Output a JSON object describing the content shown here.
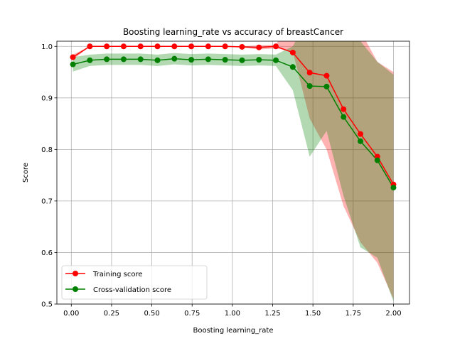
{
  "chart_data": {
    "type": "line",
    "title": "Boosting learning_rate vs accuracy of breastCancer",
    "xlabel": "Boosting learning_rate",
    "ylabel": "Score",
    "xlim": [
      -0.0895,
      2.0995
    ],
    "ylim": [
      0.5,
      1.01
    ],
    "x_ticks": [
      "0.00",
      "0.25",
      "0.50",
      "0.75",
      "1.00",
      "1.25",
      "1.50",
      "1.75",
      "2.00"
    ],
    "y_ticks": [
      "0.5",
      "0.6",
      "0.7",
      "0.8",
      "0.9",
      "1.0"
    ],
    "grid": true,
    "legend_position": "lower-left",
    "x": [
      0.01,
      0.115,
      0.22,
      0.325,
      0.43,
      0.535,
      0.64,
      0.745,
      0.85,
      0.955,
      1.06,
      1.165,
      1.27,
      1.375,
      1.48,
      1.585,
      1.69,
      1.795,
      1.9,
      2.0
    ],
    "series": [
      {
        "name": "Training score",
        "color": "#ff0000",
        "band_color": "#ff0000",
        "values": [
          0.979,
          1.0,
          1.0,
          1.0,
          1.0,
          1.0,
          1.0,
          1.0,
          1.0,
          1.0,
          0.999,
          0.998,
          1.0,
          0.988,
          0.949,
          0.943,
          0.878,
          0.83,
          0.786,
          0.732
        ],
        "band_upper": [
          0.984,
          1.0,
          1.0,
          1.0,
          1.0,
          1.0,
          1.0,
          1.0,
          1.0,
          1.0,
          1.0,
          1.002,
          1.003,
          1.06,
          1.09,
          1.12,
          1.1,
          1.03,
          0.97,
          0.95
        ],
        "band_lower": [
          0.974,
          1.0,
          1.0,
          1.0,
          1.0,
          1.0,
          1.0,
          1.0,
          1.0,
          1.0,
          0.998,
          0.994,
          0.996,
          0.99,
          0.86,
          0.8,
          0.69,
          0.62,
          0.58,
          0.51
        ]
      },
      {
        "name": "Cross-validation score",
        "color": "#008000",
        "band_color": "#008000",
        "values": [
          0.965,
          0.973,
          0.975,
          0.975,
          0.975,
          0.973,
          0.976,
          0.974,
          0.975,
          0.974,
          0.973,
          0.974,
          0.973,
          0.96,
          0.923,
          0.922,
          0.863,
          0.816,
          0.779,
          0.726
        ],
        "band_upper": [
          0.979,
          0.984,
          0.986,
          0.986,
          0.986,
          0.984,
          0.987,
          0.985,
          0.986,
          0.985,
          0.984,
          0.985,
          0.984,
          1.0,
          1.06,
          1.06,
          1.03,
          1.01,
          0.97,
          0.945
        ],
        "band_lower": [
          0.951,
          0.962,
          0.964,
          0.964,
          0.964,
          0.962,
          0.965,
          0.963,
          0.964,
          0.963,
          0.962,
          0.963,
          0.962,
          0.915,
          0.786,
          0.836,
          0.71,
          0.61,
          0.59,
          0.505
        ]
      }
    ]
  }
}
